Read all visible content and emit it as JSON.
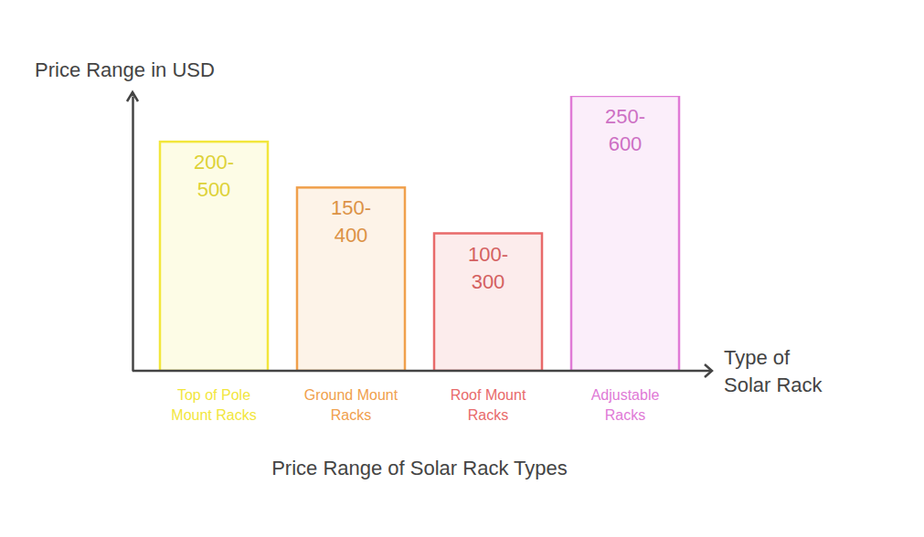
{
  "chart_data": {
    "type": "bar",
    "title": "Price Range of Solar Rack Types",
    "y_label": "Price Range in USD",
    "x_label": "Type of Solar Rack",
    "categories": [
      "Top of Pole Mount Racks",
      "Ground Mount Racks",
      "Roof Mount Racks",
      "Adjustable Racks"
    ],
    "values": [
      500,
      400,
      300,
      600
    ],
    "value_labels": [
      "200-500",
      "150-400",
      "100-300",
      "250-600"
    ],
    "colors": [
      "#f2e63c",
      "#f0a04c",
      "#e86a6a",
      "#e07ad6"
    ],
    "ylim": [
      0,
      600
    ],
    "yticks": [],
    "tick_labels": "x",
    "data_labels": true
  }
}
